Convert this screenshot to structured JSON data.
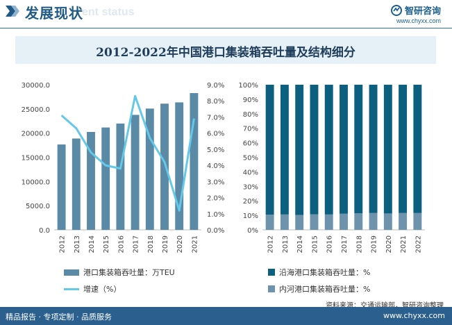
{
  "header": {
    "title": "发展现状",
    "watermark": "ent status"
  },
  "logo": {
    "name": "智研咨询",
    "url": "www.chyxx.com"
  },
  "chart_title": "2012-2022年中国港口集装箱吞吐量及结构细分",
  "colors": {
    "bar": "#5a8aa6",
    "line": "#64c8e8",
    "coastal": "#0d5f80",
    "inland": "#6e94ad",
    "header": "#1f5b86",
    "footer": "#2a5f8e"
  },
  "chart_data": [
    {
      "type": "bar",
      "categories": [
        "2012",
        "2013",
        "2014",
        "2015",
        "2016",
        "2017",
        "2018",
        "2019",
        "2020",
        "2021"
      ],
      "series": [
        {
          "name": "港口集装箱吞吐量：万TEU",
          "axis": "left",
          "values": [
            17650,
            18880,
            20240,
            21160,
            21980,
            23770,
            25070,
            26090,
            26350,
            28270
          ]
        },
        {
          "name": "增速（%）",
          "axis": "right",
          "type": "line",
          "values": [
            7.1,
            6.3,
            4.8,
            4.0,
            3.8,
            8.3,
            5.7,
            4.2,
            1.2,
            6.9
          ]
        }
      ],
      "yleft": {
        "range": [
          0,
          30000
        ],
        "ticks": [
          "0.0",
          "5000.0",
          "10000.0",
          "15000.0",
          "20000.0",
          "25000.0",
          "30000.0"
        ]
      },
      "yright": {
        "range": [
          0,
          9
        ],
        "ticks": [
          "0.0%",
          "1.0%",
          "2.0%",
          "3.0%",
          "4.0%",
          "5.0%",
          "6.0%",
          "7.0%",
          "8.0%",
          "9.0%"
        ]
      },
      "legend_position": "bottom"
    },
    {
      "type": "bar",
      "stacked": true,
      "categories": [
        "2012",
        "2013",
        "2014",
        "2015",
        "2016",
        "2017",
        "2018",
        "2019",
        "2020",
        "2021",
        "2022"
      ],
      "series": [
        {
          "name": "内河港口集装箱吞吐量：%",
          "values": [
            10.5,
            10.6,
            10.3,
            10.7,
            10.6,
            11.1,
            11.4,
            11.6,
            11.3,
            11.6,
            11.6
          ]
        },
        {
          "name": "沿海港口集装箱吞吐量：%",
          "values": [
            89.5,
            89.4,
            89.7,
            89.3,
            89.4,
            88.9,
            88.6,
            88.4,
            88.7,
            88.4,
            88.4
          ]
        }
      ],
      "yaxis": {
        "range": [
          0,
          100
        ],
        "ticks": [
          "0%",
          "10%",
          "20%",
          "30%",
          "40%",
          "50%",
          "60%",
          "70%",
          "80%",
          "90%",
          "100%"
        ]
      },
      "legend_position": "bottom"
    }
  ],
  "legend": {
    "left": [
      "港口集装箱吞吐量：万TEU",
      "增速（%）"
    ],
    "right": [
      "沿海港口集装箱吞吐量：%",
      "内河港口集装箱吞吐量：%"
    ]
  },
  "source": "资料来源：交通运输部，智研咨询整理",
  "footer": {
    "left": "精品报告 · 专项定制 · 品质服务",
    "right": "www.chyxx.com"
  }
}
